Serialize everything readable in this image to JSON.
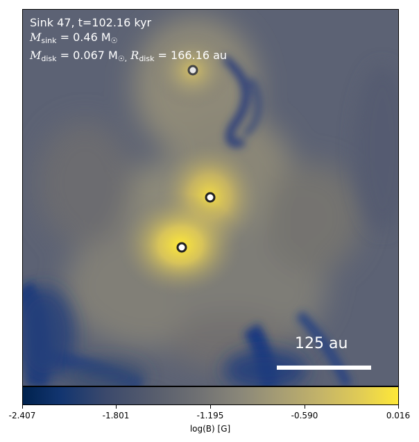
{
  "info": {
    "line1": "Sink 47, t=102.16 kyr",
    "msink_symbol": "M",
    "msink_sub": "sink",
    "msink_value": "= 0.46 M",
    "msink_sun": "☉",
    "mdisk_symbol": "M",
    "mdisk_sub": "disk",
    "mdisk_value": "= 0.067 M",
    "mdisk_sun": "☉,",
    "rdisk_symbol": "R",
    "rdisk_sub": "disk",
    "rdisk_value": "= 166.16 au"
  },
  "scale_bar": {
    "label": "125 au"
  },
  "colorbar": {
    "ticks": [
      "-2.407",
      "-1.801",
      "-1.195",
      "-0.590",
      "0.016"
    ],
    "label": "log(B) [G]",
    "colors": [
      "#00224e",
      "#575d6d",
      "#8a8779",
      "#c3b369",
      "#fee838"
    ]
  }
}
